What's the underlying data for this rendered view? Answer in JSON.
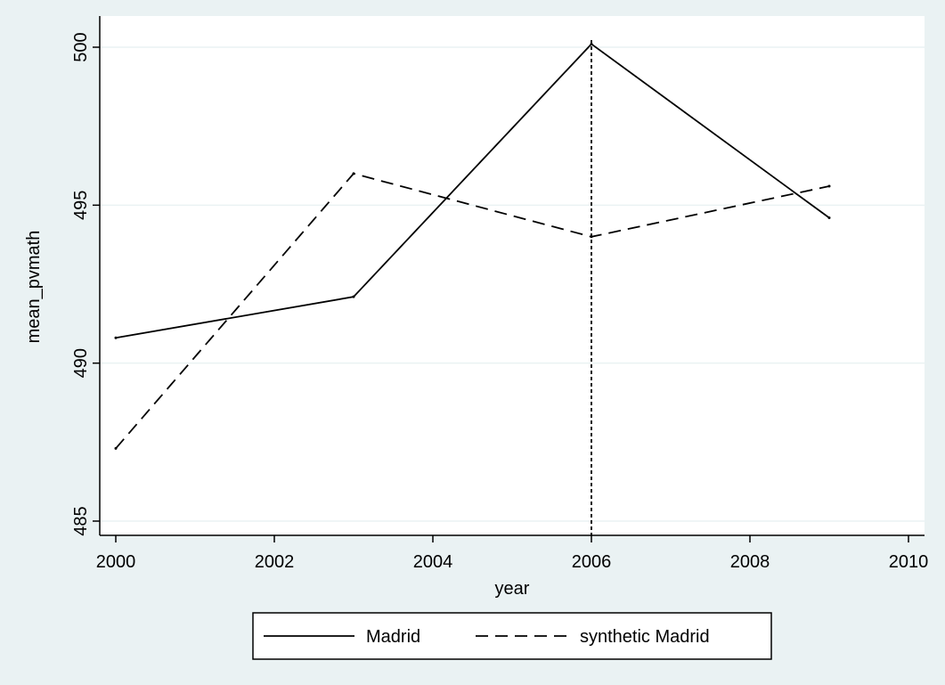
{
  "colors": {
    "figure_background": "#eaf2f3",
    "plot_background": "#ffffff",
    "gridline": "#eaf2f3",
    "series_line": "#000000",
    "reference_line": "#000000"
  },
  "chart_data": {
    "type": "line",
    "xlabel": "year",
    "ylabel": "mean_pvmath",
    "xlim": [
      2000,
      2010
    ],
    "ylim": [
      485,
      500
    ],
    "x_ticks": [
      2000,
      2002,
      2004,
      2006,
      2008,
      2010
    ],
    "y_ticks": [
      485,
      490,
      495,
      500
    ],
    "x_tick_labels": [
      "2000",
      "2002",
      "2004",
      "2006",
      "2008",
      "2010"
    ],
    "y_tick_labels": [
      "485",
      "490",
      "495",
      "500"
    ],
    "grid": "horizontal",
    "legend_position": "bottom",
    "reference_line": {
      "x": 2006,
      "style": "dotted"
    },
    "series": [
      {
        "name": "Madrid",
        "style": "solid",
        "x": [
          2000,
          2003,
          2006,
          2009
        ],
        "values": [
          490.8,
          492.1,
          500.1,
          494.6
        ]
      },
      {
        "name": "synthetic Madrid",
        "style": "dashed",
        "x": [
          2000,
          2003,
          2006,
          2009
        ],
        "values": [
          487.3,
          496.0,
          494.0,
          495.6
        ]
      }
    ]
  }
}
